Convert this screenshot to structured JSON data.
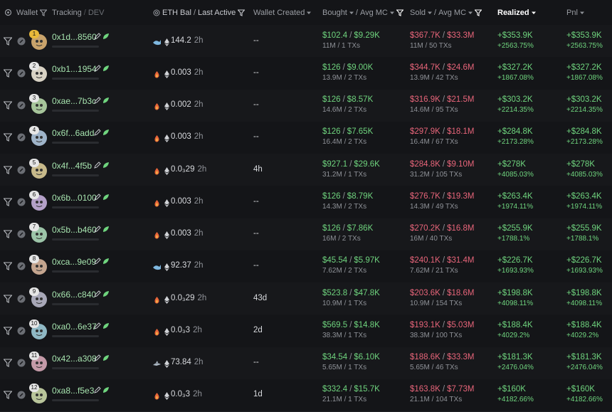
{
  "header": {
    "wallet": "Wallet",
    "tracking": "Tracking",
    "separator": "/",
    "dev": "DEV",
    "eth_bal": "ETH Bal",
    "last_active": "Last Active",
    "wallet_created": "Wallet Created",
    "bought": "Bought",
    "avg_mc": "Avg MC",
    "sold": "Sold",
    "realized": "Realized",
    "pnl": "Pnl"
  },
  "rows": [
    {
      "rank": 1,
      "address": "0x1d...8560",
      "eth_bal": "144.2",
      "last_active": "2h",
      "created": "--",
      "bought": "$102.4",
      "bought_avg_mc": "$9.29K",
      "bought_detail": "11M / 1 TXs",
      "sold": "$367.7K",
      "sold_avg_mc": "$33.3M",
      "sold_detail": "11M / 50 TXs",
      "realized": "+$353.9K",
      "realized_pct": "+2563.75%",
      "pnl": "+$353.9K",
      "pnl_pct": "+2563.75%"
    },
    {
      "rank": 2,
      "address": "0xb1...1954",
      "eth_bal": "0.003",
      "last_active": "2h",
      "created": "--",
      "bought": "$126",
      "bought_avg_mc": "$9.00K",
      "bought_detail": "13.9M / 2 TXs",
      "sold": "$344.7K",
      "sold_avg_mc": "$24.6M",
      "sold_detail": "13.9M / 42 TXs",
      "realized": "+$327.2K",
      "realized_pct": "+1867.08%",
      "pnl": "+$327.2K",
      "pnl_pct": "+1867.08%"
    },
    {
      "rank": 3,
      "address": "0xae...7b3c",
      "eth_bal": "0.002",
      "last_active": "2h",
      "created": "--",
      "bought": "$126",
      "bought_avg_mc": "$8.57K",
      "bought_detail": "14.6M / 2 TXs",
      "sold": "$316.9K",
      "sold_avg_mc": "$21.5M",
      "sold_detail": "14.6M / 95 TXs",
      "realized": "+$303.2K",
      "realized_pct": "+2214.35%",
      "pnl": "+$303.2K",
      "pnl_pct": "+2214.35%"
    },
    {
      "rank": 4,
      "address": "0x6f...6add",
      "eth_bal": "0.003",
      "last_active": "2h",
      "created": "--",
      "bought": "$126",
      "bought_avg_mc": "$7.65K",
      "bought_detail": "16.4M / 2 TXs",
      "sold": "$297.9K",
      "sold_avg_mc": "$18.1M",
      "sold_detail": "16.4M / 67 TXs",
      "realized": "+$284.8K",
      "realized_pct": "+2173.28%",
      "pnl": "+$284.8K",
      "pnl_pct": "+2173.28%"
    },
    {
      "rank": 5,
      "address": "0x4f...4f5b",
      "eth_bal": "0.0₃29",
      "last_active": "2h",
      "created": "4h",
      "bought": "$927.1",
      "bought_avg_mc": "$29.6K",
      "bought_detail": "31.2M / 1 TXs",
      "sold": "$284.8K",
      "sold_avg_mc": "$9.10M",
      "sold_detail": "31.2M / 105 TXs",
      "realized": "+$278K",
      "realized_pct": "+4085.03%",
      "pnl": "+$278K",
      "pnl_pct": "+4085.03%"
    },
    {
      "rank": 6,
      "address": "0x6b...0100",
      "eth_bal": "0.003",
      "last_active": "2h",
      "created": "--",
      "bought": "$126",
      "bought_avg_mc": "$8.79K",
      "bought_detail": "14.3M / 2 TXs",
      "sold": "$276.7K",
      "sold_avg_mc": "$19.3M",
      "sold_detail": "14.3M / 49 TXs",
      "realized": "+$263.4K",
      "realized_pct": "+1974.11%",
      "pnl": "+$263.4K",
      "pnl_pct": "+1974.11%"
    },
    {
      "rank": 7,
      "address": "0x5b...b460",
      "eth_bal": "0.003",
      "last_active": "2h",
      "created": "--",
      "bought": "$126",
      "bought_avg_mc": "$7.86K",
      "bought_detail": "16M / 2 TXs",
      "sold": "$270.2K",
      "sold_avg_mc": "$16.8M",
      "sold_detail": "16M / 40 TXs",
      "realized": "+$255.9K",
      "realized_pct": "+1788.1%",
      "pnl": "+$255.9K",
      "pnl_pct": "+1788.1%"
    },
    {
      "rank": 8,
      "address": "0xca...9e09",
      "eth_bal": "92.37",
      "last_active": "2h",
      "created": "--",
      "bought": "$45.54",
      "bought_avg_mc": "$5.97K",
      "bought_detail": "7.62M / 2 TXs",
      "sold": "$240.1K",
      "sold_avg_mc": "$31.4M",
      "sold_detail": "7.62M / 21 TXs",
      "realized": "+$226.7K",
      "realized_pct": "+1693.93%",
      "pnl": "+$226.7K",
      "pnl_pct": "+1693.93%"
    },
    {
      "rank": 9,
      "address": "0x66...c840",
      "eth_bal": "0.0₃29",
      "last_active": "2h",
      "created": "43d",
      "bought": "$523.8",
      "bought_avg_mc": "$47.8K",
      "bought_detail": "10.9M / 1 TXs",
      "sold": "$203.6K",
      "sold_avg_mc": "$18.6M",
      "sold_detail": "10.9M / 154 TXs",
      "realized": "+$198.8K",
      "realized_pct": "+4098.11%",
      "pnl": "+$198.8K",
      "pnl_pct": "+4098.11%"
    },
    {
      "rank": 10,
      "address": "0xa0...6e37",
      "eth_bal": "0.0₃3",
      "last_active": "2h",
      "created": "2d",
      "bought": "$569.5",
      "bought_avg_mc": "$14.8K",
      "bought_detail": "38.3M / 1 TXs",
      "sold": "$193.1K",
      "sold_avg_mc": "$5.03M",
      "sold_detail": "38.3M / 100 TXs",
      "realized": "+$188.4K",
      "realized_pct": "+4029.2%",
      "pnl": "+$188.4K",
      "pnl_pct": "+4029.2%"
    },
    {
      "rank": 11,
      "address": "0x42...a308",
      "eth_bal": "73.84",
      "last_active": "2h",
      "created": "--",
      "bought": "$34.54",
      "bought_avg_mc": "$6.10K",
      "bought_detail": "5.65M / 1 TXs",
      "sold": "$188.6K",
      "sold_avg_mc": "$33.3M",
      "sold_detail": "5.65M / 46 TXs",
      "realized": "+$181.3K",
      "realized_pct": "+2476.04%",
      "pnl": "+$181.3K",
      "pnl_pct": "+2476.04%"
    },
    {
      "rank": 12,
      "address": "0xa8...f5e3",
      "eth_bal": "0.0₃3",
      "last_active": "2h",
      "created": "1d",
      "bought": "$332.4",
      "bought_avg_mc": "$15.7K",
      "bought_detail": "21.1M / 1 TXs",
      "sold": "$163.8K",
      "sold_avg_mc": "$7.73M",
      "sold_detail": "21.1M / 104 TXs",
      "realized": "+$160K",
      "realized_pct": "+4182.66%",
      "pnl": "+$160K",
      "pnl_pct": "+4182.66%"
    }
  ]
}
